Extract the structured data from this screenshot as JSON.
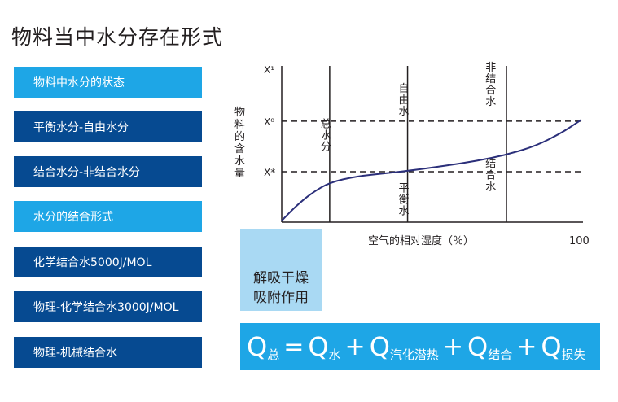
{
  "title": "物料当中水分存在形式",
  "left_panel": {
    "items": [
      {
        "label": "物料中水分的状态",
        "style": "light"
      },
      {
        "label": "平衡水分-自由水分",
        "style": "dark"
      },
      {
        "label": "结合水分-非结合水分",
        "style": "dark"
      },
      {
        "label": "水分的结合形式",
        "style": "light"
      },
      {
        "label": "化学结合水5000J/MOL",
        "style": "dark"
      },
      {
        "label": "物理-化学结合水3000J/MOL",
        "style": "dark"
      },
      {
        "label": "物理-机械结合水",
        "style": "dark"
      }
    ]
  },
  "chart_data": {
    "type": "line",
    "ylabel": "物料的含水量",
    "xlabel": "空气的相对湿度（％）",
    "x_max_label": "100",
    "y_levels": [
      {
        "label": "X¹",
        "value": 1.0
      },
      {
        "label": "X⁰",
        "value": 0.66
      },
      {
        "label": "X*",
        "value": 0.33
      }
    ],
    "x_range": [
      0,
      100
    ],
    "y_range": [
      0,
      1
    ],
    "vertical_lines_x": [
      16,
      42,
      75
    ],
    "curve": [
      {
        "x": 0,
        "y": 0.01
      },
      {
        "x": 5,
        "y": 0.11
      },
      {
        "x": 10,
        "y": 0.19
      },
      {
        "x": 16,
        "y": 0.26
      },
      {
        "x": 25,
        "y": 0.3
      },
      {
        "x": 35,
        "y": 0.32
      },
      {
        "x": 42,
        "y": 0.335
      },
      {
        "x": 55,
        "y": 0.37
      },
      {
        "x": 65,
        "y": 0.4
      },
      {
        "x": 75,
        "y": 0.44
      },
      {
        "x": 85,
        "y": 0.5
      },
      {
        "x": 93,
        "y": 0.58
      },
      {
        "x": 97,
        "y": 0.63
      },
      {
        "x": 100,
        "y": 0.67
      }
    ],
    "region_labels": [
      {
        "text": "总水分",
        "x": 13,
        "y": 0.62
      },
      {
        "text": "自由水",
        "x": 39,
        "y": 0.85
      },
      {
        "text": "平衡水",
        "x": 39,
        "y": 0.2
      },
      {
        "text": "非结合水",
        "x": 68,
        "y": 0.99
      },
      {
        "text": "结合水",
        "x": 68,
        "y": 0.36
      }
    ]
  },
  "tip": {
    "line1": "解吸干燥",
    "line2": "吸附作用"
  },
  "formula": {
    "q": "Q",
    "eq": "=",
    "plus": "+",
    "terms": [
      "总",
      "水",
      "汽化潜热",
      "结合",
      "损失"
    ]
  },
  "colors": {
    "light_blue": "#1ea6e6",
    "dark_blue": "#064a91",
    "pale_blue": "#a9d9f3",
    "curve": "#2b2f7a"
  }
}
